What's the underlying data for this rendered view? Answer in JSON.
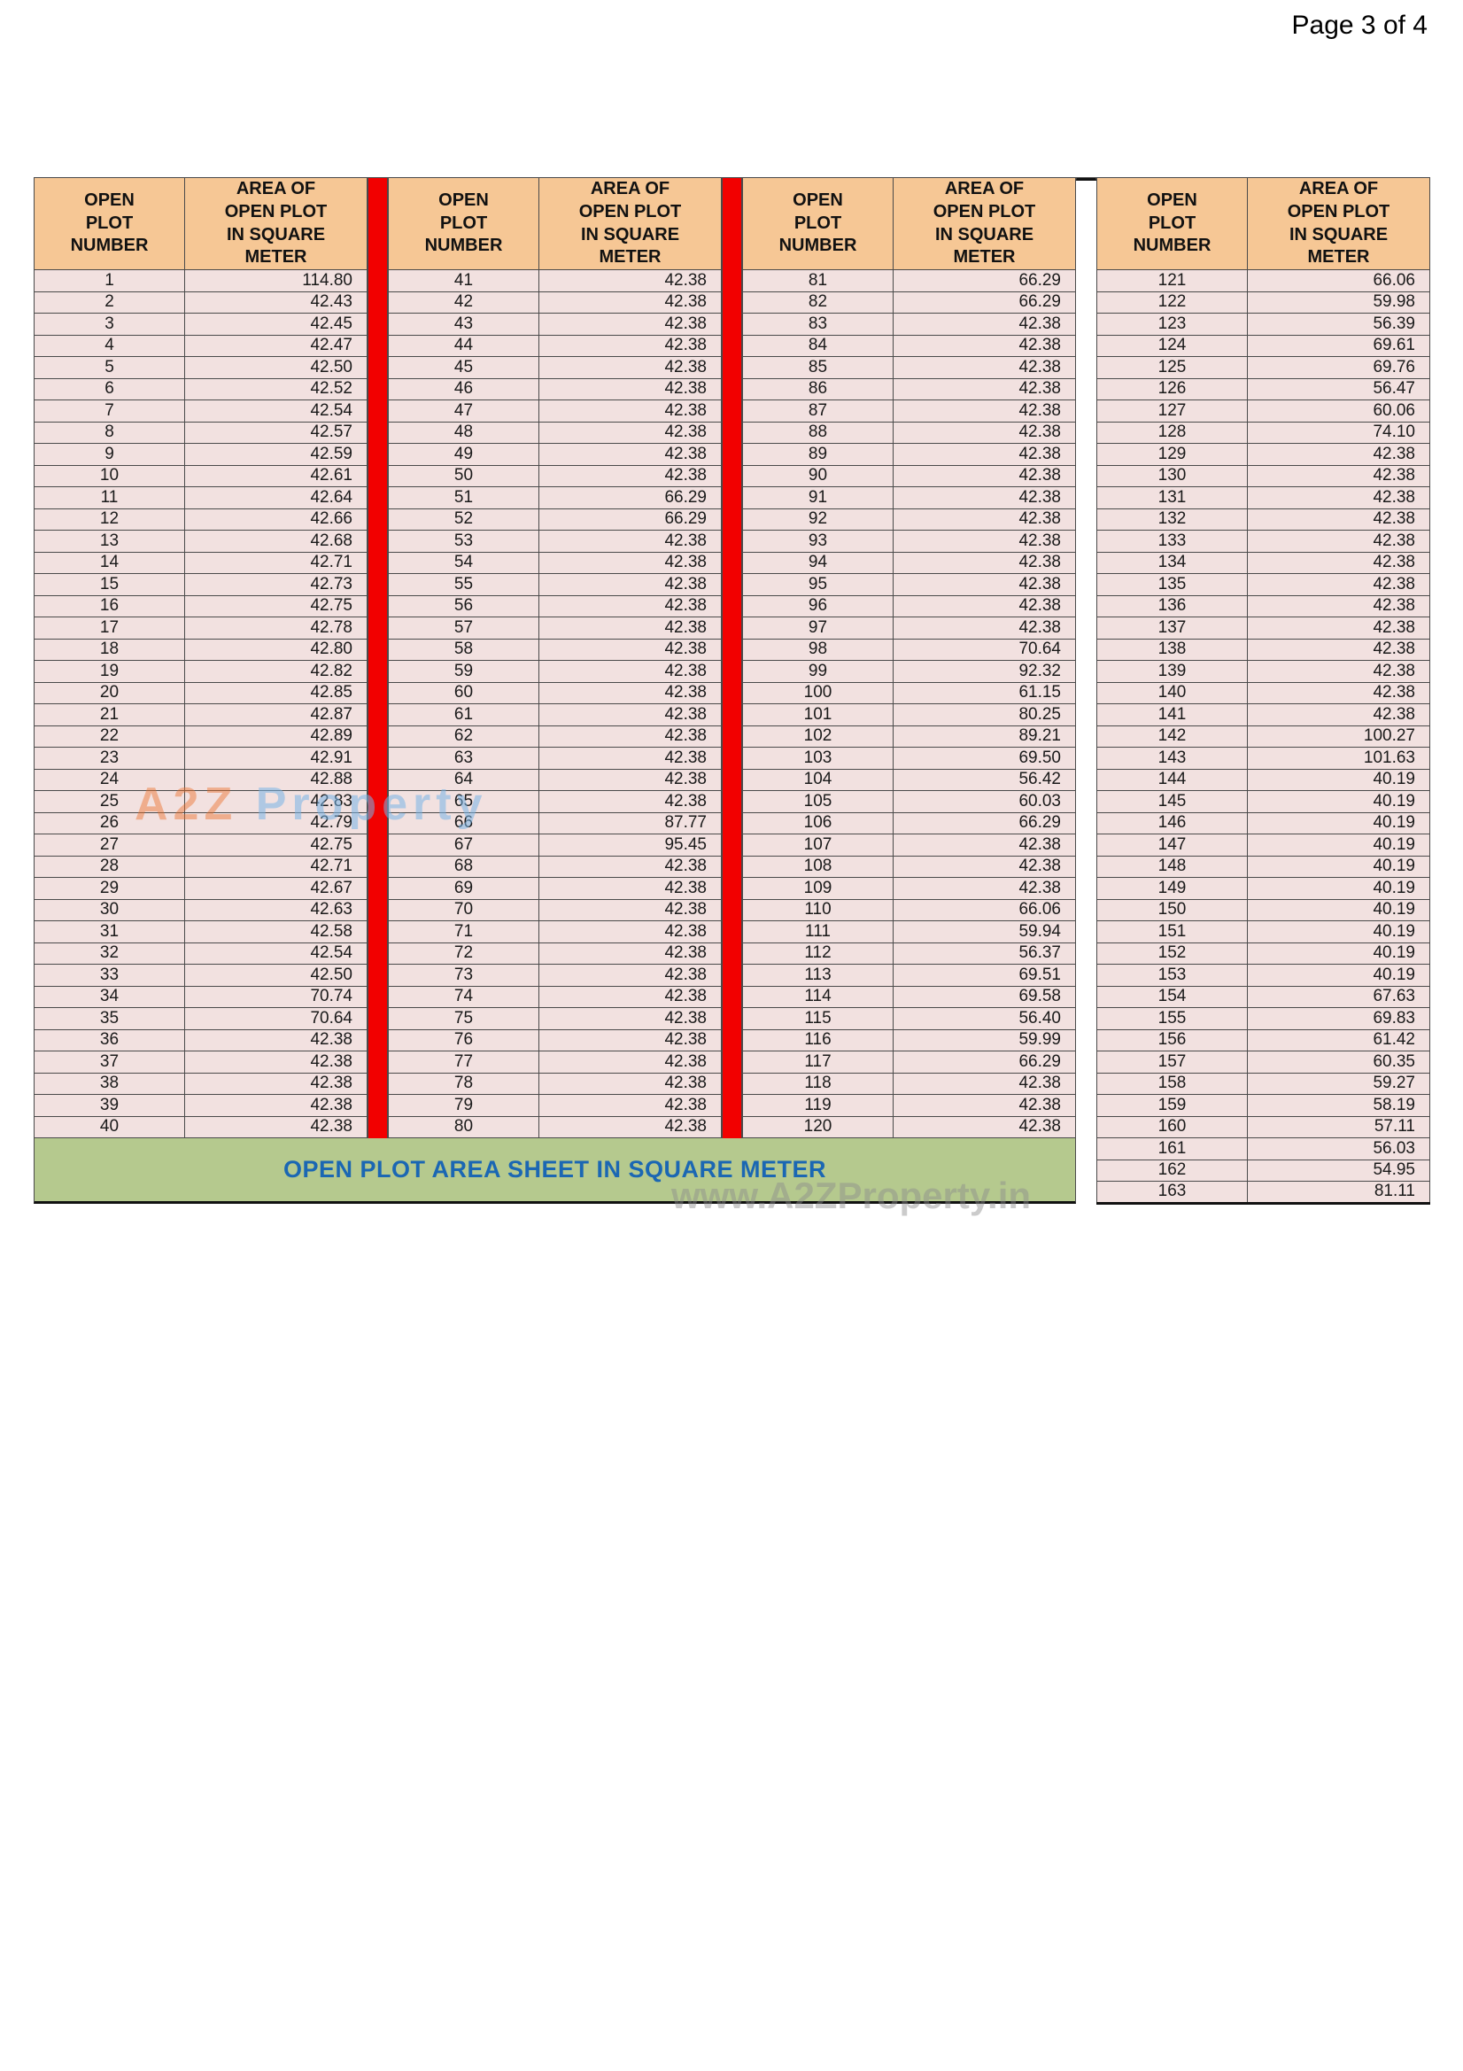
{
  "page": {
    "label": "Page 3 of 4"
  },
  "colors": {
    "header_bg": "#f6c795",
    "row_bg": "#f2e1e0",
    "separator": "#f20000",
    "banner_bg": "#b5c98e",
    "banner_text": "#1b67b3"
  },
  "watermark": {
    "brand_a2z": "A2Z ",
    "brand_property": "Property",
    "site": "www.A2ZProperty.in"
  },
  "footer": {
    "banner": "OPEN PLOT AREA SHEET IN SQUARE METER"
  },
  "table": {
    "headers": [
      "OPEN\nPLOT\nNUMBER",
      "AREA OF\nOPEN PLOT\nIN SQUARE\nMETER"
    ],
    "groups": [
      {
        "rows": [
          [
            "1",
            "114.80"
          ],
          [
            "2",
            "42.43"
          ],
          [
            "3",
            "42.45"
          ],
          [
            "4",
            "42.47"
          ],
          [
            "5",
            "42.50"
          ],
          [
            "6",
            "42.52"
          ],
          [
            "7",
            "42.54"
          ],
          [
            "8",
            "42.57"
          ],
          [
            "9",
            "42.59"
          ],
          [
            "10",
            "42.61"
          ],
          [
            "11",
            "42.64"
          ],
          [
            "12",
            "42.66"
          ],
          [
            "13",
            "42.68"
          ],
          [
            "14",
            "42.71"
          ],
          [
            "15",
            "42.73"
          ],
          [
            "16",
            "42.75"
          ],
          [
            "17",
            "42.78"
          ],
          [
            "18",
            "42.80"
          ],
          [
            "19",
            "42.82"
          ],
          [
            "20",
            "42.85"
          ],
          [
            "21",
            "42.87"
          ],
          [
            "22",
            "42.89"
          ],
          [
            "23",
            "42.91"
          ],
          [
            "24",
            "42.88"
          ],
          [
            "25",
            "42.83"
          ],
          [
            "26",
            "42.79"
          ],
          [
            "27",
            "42.75"
          ],
          [
            "28",
            "42.71"
          ],
          [
            "29",
            "42.67"
          ],
          [
            "30",
            "42.63"
          ],
          [
            "31",
            "42.58"
          ],
          [
            "32",
            "42.54"
          ],
          [
            "33",
            "42.50"
          ],
          [
            "34",
            "70.74"
          ],
          [
            "35",
            "70.64"
          ],
          [
            "36",
            "42.38"
          ],
          [
            "37",
            "42.38"
          ],
          [
            "38",
            "42.38"
          ],
          [
            "39",
            "42.38"
          ],
          [
            "40",
            "42.38"
          ]
        ]
      },
      {
        "rows": [
          [
            "41",
            "42.38"
          ],
          [
            "42",
            "42.38"
          ],
          [
            "43",
            "42.38"
          ],
          [
            "44",
            "42.38"
          ],
          [
            "45",
            "42.38"
          ],
          [
            "46",
            "42.38"
          ],
          [
            "47",
            "42.38"
          ],
          [
            "48",
            "42.38"
          ],
          [
            "49",
            "42.38"
          ],
          [
            "50",
            "42.38"
          ],
          [
            "51",
            "66.29"
          ],
          [
            "52",
            "66.29"
          ],
          [
            "53",
            "42.38"
          ],
          [
            "54",
            "42.38"
          ],
          [
            "55",
            "42.38"
          ],
          [
            "56",
            "42.38"
          ],
          [
            "57",
            "42.38"
          ],
          [
            "58",
            "42.38"
          ],
          [
            "59",
            "42.38"
          ],
          [
            "60",
            "42.38"
          ],
          [
            "61",
            "42.38"
          ],
          [
            "62",
            "42.38"
          ],
          [
            "63",
            "42.38"
          ],
          [
            "64",
            "42.38"
          ],
          [
            "65",
            "42.38"
          ],
          [
            "66",
            "87.77"
          ],
          [
            "67",
            "95.45"
          ],
          [
            "68",
            "42.38"
          ],
          [
            "69",
            "42.38"
          ],
          [
            "70",
            "42.38"
          ],
          [
            "71",
            "42.38"
          ],
          [
            "72",
            "42.38"
          ],
          [
            "73",
            "42.38"
          ],
          [
            "74",
            "42.38"
          ],
          [
            "75",
            "42.38"
          ],
          [
            "76",
            "42.38"
          ],
          [
            "77",
            "42.38"
          ],
          [
            "78",
            "42.38"
          ],
          [
            "79",
            "42.38"
          ],
          [
            "80",
            "42.38"
          ]
        ]
      },
      {
        "rows": [
          [
            "81",
            "66.29"
          ],
          [
            "82",
            "66.29"
          ],
          [
            "83",
            "42.38"
          ],
          [
            "84",
            "42.38"
          ],
          [
            "85",
            "42.38"
          ],
          [
            "86",
            "42.38"
          ],
          [
            "87",
            "42.38"
          ],
          [
            "88",
            "42.38"
          ],
          [
            "89",
            "42.38"
          ],
          [
            "90",
            "42.38"
          ],
          [
            "91",
            "42.38"
          ],
          [
            "92",
            "42.38"
          ],
          [
            "93",
            "42.38"
          ],
          [
            "94",
            "42.38"
          ],
          [
            "95",
            "42.38"
          ],
          [
            "96",
            "42.38"
          ],
          [
            "97",
            "42.38"
          ],
          [
            "98",
            "70.64"
          ],
          [
            "99",
            "92.32"
          ],
          [
            "100",
            "61.15"
          ],
          [
            "101",
            "80.25"
          ],
          [
            "102",
            "89.21"
          ],
          [
            "103",
            "69.50"
          ],
          [
            "104",
            "56.42"
          ],
          [
            "105",
            "60.03"
          ],
          [
            "106",
            "66.29"
          ],
          [
            "107",
            "42.38"
          ],
          [
            "108",
            "42.38"
          ],
          [
            "109",
            "42.38"
          ],
          [
            "110",
            "66.06"
          ],
          [
            "111",
            "59.94"
          ],
          [
            "112",
            "56.37"
          ],
          [
            "113",
            "69.51"
          ],
          [
            "114",
            "69.58"
          ],
          [
            "115",
            "56.40"
          ],
          [
            "116",
            "59.99"
          ],
          [
            "117",
            "66.29"
          ],
          [
            "118",
            "42.38"
          ],
          [
            "119",
            "42.38"
          ],
          [
            "120",
            "42.38"
          ]
        ]
      },
      {
        "rows": [
          [
            "121",
            "66.06"
          ],
          [
            "122",
            "59.98"
          ],
          [
            "123",
            "56.39"
          ],
          [
            "124",
            "69.61"
          ],
          [
            "125",
            "69.76"
          ],
          [
            "126",
            "56.47"
          ],
          [
            "127",
            "60.06"
          ],
          [
            "128",
            "74.10"
          ],
          [
            "129",
            "42.38"
          ],
          [
            "130",
            "42.38"
          ],
          [
            "131",
            "42.38"
          ],
          [
            "132",
            "42.38"
          ],
          [
            "133",
            "42.38"
          ],
          [
            "134",
            "42.38"
          ],
          [
            "135",
            "42.38"
          ],
          [
            "136",
            "42.38"
          ],
          [
            "137",
            "42.38"
          ],
          [
            "138",
            "42.38"
          ],
          [
            "139",
            "42.38"
          ],
          [
            "140",
            "42.38"
          ],
          [
            "141",
            "42.38"
          ],
          [
            "142",
            "100.27"
          ],
          [
            "143",
            "101.63"
          ],
          [
            "144",
            "40.19"
          ],
          [
            "145",
            "40.19"
          ],
          [
            "146",
            "40.19"
          ],
          [
            "147",
            "40.19"
          ],
          [
            "148",
            "40.19"
          ],
          [
            "149",
            "40.19"
          ],
          [
            "150",
            "40.19"
          ],
          [
            "151",
            "40.19"
          ],
          [
            "152",
            "40.19"
          ],
          [
            "153",
            "40.19"
          ],
          [
            "154",
            "67.63"
          ],
          [
            "155",
            "69.83"
          ],
          [
            "156",
            "61.42"
          ],
          [
            "157",
            "60.35"
          ],
          [
            "158",
            "59.27"
          ],
          [
            "159",
            "58.19"
          ],
          [
            "160",
            "57.11"
          ],
          [
            "161",
            "56.03"
          ],
          [
            "162",
            "54.95"
          ],
          [
            "163",
            "81.11"
          ]
        ]
      }
    ]
  }
}
